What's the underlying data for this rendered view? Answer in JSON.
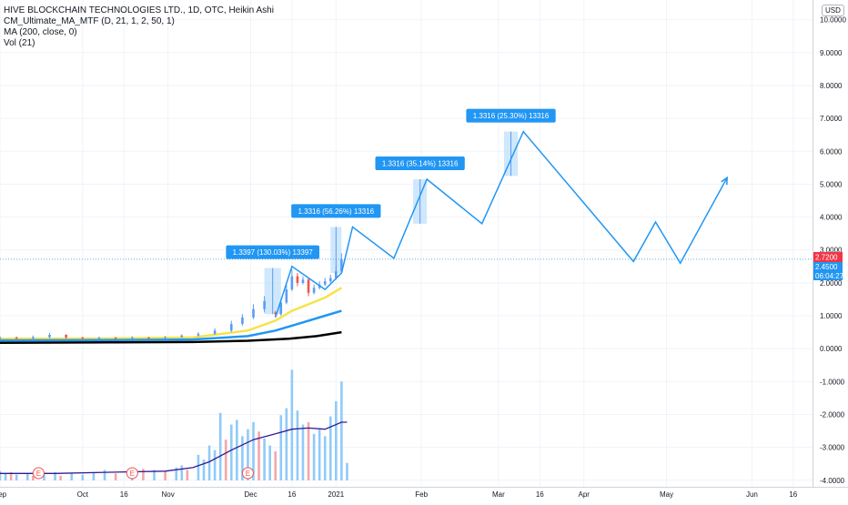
{
  "legend": {
    "title": "HIVE BLOCKCHAIN TECHNOLOGIES LTD., 1D, OTC, Heikin Ashi",
    "line2": "CM_Ultimate_MA_MTF (D, 21, 1, 2, 50, 1)",
    "line3": "MA (200, close, 0)",
    "line4": "Vol (21)"
  },
  "currency_badge": "USD",
  "colors": {
    "up": "#26a69a",
    "up_bar": "#5b9cf6",
    "down": "#ef5350",
    "ma_yellow": "#f7e24a",
    "ma_blue": "#2196f3",
    "ma_black": "#000000",
    "projection": "#2196f3",
    "vol_up": "#90caf9",
    "vol_down": "#f4a7a7",
    "vol_ma": "#311b92",
    "measure_fill": "#bbdefb",
    "label_bg": "#2196f3",
    "last_price_bg": "#f23645",
    "ma_price_bg": "#2196f3",
    "axis_text": "#131722"
  },
  "chart_data": {
    "type": "line",
    "ylim": [
      -4.2,
      10.6
    ],
    "xlim": [
      0,
      295
    ],
    "x_ticks": [
      {
        "label": "Sep",
        "day": 0
      },
      {
        "label": "Oct",
        "day": 30
      },
      {
        "label": "16",
        "day": 45
      },
      {
        "label": "Nov",
        "day": 61
      },
      {
        "label": "Dec",
        "day": 91
      },
      {
        "label": "16",
        "day": 106
      },
      {
        "label": "2021",
        "day": 122
      },
      {
        "label": "Feb",
        "day": 153
      },
      {
        "label": "Mar",
        "day": 181
      },
      {
        "label": "16",
        "day": 196
      },
      {
        "label": "Apr",
        "day": 212
      },
      {
        "label": "May",
        "day": 242
      },
      {
        "label": "Jun",
        "day": 273
      },
      {
        "label": "16",
        "day": 288
      }
    ],
    "y_ticks": [
      "10.0000",
      "9.0000",
      "8.0000",
      "7.0000",
      "6.0000",
      "5.0000",
      "4.0000",
      "3.0000",
      "2.0000",
      "1.0000",
      "0.0000",
      "-1.0000",
      "-2.0000",
      "-3.0000",
      "-4.0000"
    ],
    "price_labels": {
      "last": "2.7200",
      "ma": "2.4500",
      "countdown": "06:04:27"
    },
    "candles": [
      {
        "day": 0,
        "o": 0.3,
        "c": 0.34,
        "h": 0.38,
        "l": 0.27
      },
      {
        "day": 6,
        "o": 0.34,
        "c": 0.31,
        "h": 0.37,
        "l": 0.28
      },
      {
        "day": 12,
        "o": 0.31,
        "c": 0.35,
        "h": 0.4,
        "l": 0.28
      },
      {
        "day": 18,
        "o": 0.35,
        "c": 0.42,
        "h": 0.48,
        "l": 0.31
      },
      {
        "day": 24,
        "o": 0.42,
        "c": 0.34,
        "h": 0.44,
        "l": 0.3
      },
      {
        "day": 30,
        "o": 0.34,
        "c": 0.31,
        "h": 0.36,
        "l": 0.27
      },
      {
        "day": 36,
        "o": 0.31,
        "c": 0.33,
        "h": 0.37,
        "l": 0.28
      },
      {
        "day": 42,
        "o": 0.33,
        "c": 0.31,
        "h": 0.36,
        "l": 0.28
      },
      {
        "day": 48,
        "o": 0.31,
        "c": 0.34,
        "h": 0.38,
        "l": 0.29
      },
      {
        "day": 54,
        "o": 0.34,
        "c": 0.32,
        "h": 0.36,
        "l": 0.29
      },
      {
        "day": 60,
        "o": 0.32,
        "c": 0.35,
        "h": 0.39,
        "l": 0.3
      },
      {
        "day": 66,
        "o": 0.35,
        "c": 0.4,
        "h": 0.44,
        "l": 0.33
      },
      {
        "day": 72,
        "o": 0.4,
        "c": 0.45,
        "h": 0.5,
        "l": 0.37
      },
      {
        "day": 78,
        "o": 0.45,
        "c": 0.55,
        "h": 0.62,
        "l": 0.42
      },
      {
        "day": 84,
        "o": 0.55,
        "c": 0.75,
        "h": 0.85,
        "l": 0.5
      },
      {
        "day": 88,
        "o": 0.75,
        "c": 0.95,
        "h": 1.05,
        "l": 0.7
      },
      {
        "day": 92,
        "o": 0.95,
        "c": 1.2,
        "h": 1.35,
        "l": 0.9
      },
      {
        "day": 96,
        "o": 1.2,
        "c": 1.45,
        "h": 1.6,
        "l": 1.1
      },
      {
        "day": 100,
        "o": 1.1,
        "c": 1.05,
        "h": 1.15,
        "l": 0.95
      },
      {
        "day": 102,
        "o": 1.05,
        "c": 1.4,
        "h": 1.5,
        "l": 1.0
      },
      {
        "day": 104,
        "o": 1.4,
        "c": 1.8,
        "h": 1.95,
        "l": 1.35
      },
      {
        "day": 106,
        "o": 1.8,
        "c": 2.2,
        "h": 2.4,
        "l": 1.75
      },
      {
        "day": 108,
        "o": 2.2,
        "c": 2.0,
        "h": 2.3,
        "l": 1.9
      },
      {
        "day": 110,
        "o": 2.0,
        "c": 2.1,
        "h": 2.2,
        "l": 1.95
      },
      {
        "day": 112,
        "o": 2.1,
        "c": 1.7,
        "h": 2.15,
        "l": 1.6
      },
      {
        "day": 114,
        "o": 1.7,
        "c": 1.85,
        "h": 1.95,
        "l": 1.65
      },
      {
        "day": 116,
        "o": 1.85,
        "c": 1.95,
        "h": 2.05,
        "l": 1.8
      },
      {
        "day": 118,
        "o": 1.95,
        "c": 2.05,
        "h": 2.15,
        "l": 1.9
      },
      {
        "day": 120,
        "o": 2.05,
        "c": 2.15,
        "h": 2.25,
        "l": 2.0
      },
      {
        "day": 122,
        "o": 2.15,
        "c": 2.35,
        "h": 2.5,
        "l": 2.1
      },
      {
        "day": 124,
        "o": 2.35,
        "c": 2.72,
        "h": 2.9,
        "l": 2.3
      }
    ],
    "series": [
      {
        "key": "ma_yellow",
        "points": [
          [
            0,
            0.3
          ],
          [
            40,
            0.31
          ],
          [
            70,
            0.34
          ],
          [
            90,
            0.55
          ],
          [
            100,
            0.85
          ],
          [
            106,
            1.15
          ],
          [
            112,
            1.35
          ],
          [
            118,
            1.55
          ],
          [
            124,
            1.85
          ]
        ]
      },
      {
        "key": "ma_blue",
        "points": [
          [
            0,
            0.25
          ],
          [
            40,
            0.26
          ],
          [
            70,
            0.28
          ],
          [
            90,
            0.38
          ],
          [
            100,
            0.55
          ],
          [
            110,
            0.8
          ],
          [
            118,
            1.0
          ],
          [
            124,
            1.15
          ]
        ]
      },
      {
        "key": "ma_black",
        "points": [
          [
            0,
            0.18
          ],
          [
            40,
            0.19
          ],
          [
            70,
            0.2
          ],
          [
            90,
            0.24
          ],
          [
            105,
            0.3
          ],
          [
            115,
            0.38
          ],
          [
            124,
            0.5
          ]
        ]
      },
      {
        "key": "projection",
        "points": [
          [
            100,
            0.95
          ],
          [
            106,
            2.5
          ],
          [
            118,
            1.8
          ],
          [
            124,
            2.3
          ],
          [
            128,
            3.7
          ],
          [
            143,
            2.75
          ],
          [
            155,
            5.15
          ],
          [
            175,
            3.8
          ],
          [
            190,
            6.6
          ],
          [
            230,
            2.65
          ],
          [
            238,
            3.85
          ],
          [
            247,
            2.6
          ],
          [
            264,
            5.2
          ]
        ]
      }
    ],
    "measures": [
      {
        "label": "1.3397 (130.03%) 13397",
        "day_start": 96,
        "day_end": 102,
        "from": 1.05,
        "to": 2.45
      },
      {
        "label": "1.3316 (56.26%) 13316",
        "day_start": 120,
        "day_end": 124,
        "from": 2.3,
        "to": 3.7
      },
      {
        "label": "1.3316 (35.14%) 13316",
        "day_start": 150,
        "day_end": 155,
        "from": 3.8,
        "to": 5.15
      },
      {
        "label": "1.3316 (25.30%) 13316",
        "day_start": 183,
        "day_end": 188,
        "from": 5.25,
        "to": 6.6
      }
    ],
    "volume": {
      "ylim": [
        0,
        100
      ],
      "bars": [
        {
          "day": 0,
          "v": 8,
          "up": true
        },
        {
          "day": 2,
          "v": 6,
          "up": true
        },
        {
          "day": 4,
          "v": 7,
          "up": false
        },
        {
          "day": 6,
          "v": 5,
          "up": true
        },
        {
          "day": 10,
          "v": 6,
          "up": true
        },
        {
          "day": 12,
          "v": 4,
          "up": false
        },
        {
          "day": 16,
          "v": 5,
          "up": true
        },
        {
          "day": 20,
          "v": 7,
          "up": true
        },
        {
          "day": 22,
          "v": 4,
          "up": false
        },
        {
          "day": 26,
          "v": 6,
          "up": true
        },
        {
          "day": 30,
          "v": 5,
          "up": true
        },
        {
          "day": 34,
          "v": 7,
          "up": true
        },
        {
          "day": 38,
          "v": 9,
          "up": true
        },
        {
          "day": 42,
          "v": 6,
          "up": false
        },
        {
          "day": 48,
          "v": 8,
          "up": true
        },
        {
          "day": 52,
          "v": 10,
          "up": false
        },
        {
          "day": 56,
          "v": 9,
          "up": true
        },
        {
          "day": 60,
          "v": 8,
          "up": false
        },
        {
          "day": 64,
          "v": 11,
          "up": true
        },
        {
          "day": 66,
          "v": 13,
          "up": true
        },
        {
          "day": 68,
          "v": 9,
          "up": false
        },
        {
          "day": 72,
          "v": 22,
          "up": true
        },
        {
          "day": 74,
          "v": 18,
          "up": true
        },
        {
          "day": 76,
          "v": 30,
          "up": true
        },
        {
          "day": 78,
          "v": 26,
          "up": true
        },
        {
          "day": 80,
          "v": 58,
          "up": true
        },
        {
          "day": 82,
          "v": 35,
          "up": false
        },
        {
          "day": 84,
          "v": 48,
          "up": true
        },
        {
          "day": 86,
          "v": 52,
          "up": true
        },
        {
          "day": 88,
          "v": 38,
          "up": true
        },
        {
          "day": 90,
          "v": 44,
          "up": true
        },
        {
          "day": 92,
          "v": 50,
          "up": true
        },
        {
          "day": 94,
          "v": 42,
          "up": false
        },
        {
          "day": 96,
          "v": 36,
          "up": true
        },
        {
          "day": 98,
          "v": 30,
          "up": true
        },
        {
          "day": 100,
          "v": 25,
          "up": false
        },
        {
          "day": 102,
          "v": 56,
          "up": true
        },
        {
          "day": 104,
          "v": 62,
          "up": true
        },
        {
          "day": 106,
          "v": 95,
          "up": true
        },
        {
          "day": 108,
          "v": 60,
          "up": true
        },
        {
          "day": 110,
          "v": 48,
          "up": true
        },
        {
          "day": 112,
          "v": 50,
          "up": false
        },
        {
          "day": 114,
          "v": 40,
          "up": true
        },
        {
          "day": 116,
          "v": 44,
          "up": true
        },
        {
          "day": 118,
          "v": 38,
          "up": true
        },
        {
          "day": 120,
          "v": 55,
          "up": true
        },
        {
          "day": 122,
          "v": 68,
          "up": true
        },
        {
          "day": 124,
          "v": 85,
          "up": true
        },
        {
          "day": 126,
          "v": 15,
          "up": true
        }
      ],
      "ma": [
        [
          0,
          6
        ],
        [
          20,
          6
        ],
        [
          40,
          7
        ],
        [
          60,
          8
        ],
        [
          70,
          11
        ],
        [
          76,
          16
        ],
        [
          84,
          26
        ],
        [
          92,
          35
        ],
        [
          100,
          40
        ],
        [
          106,
          44
        ],
        [
          112,
          45
        ],
        [
          118,
          44
        ],
        [
          124,
          50
        ],
        [
          126,
          50
        ]
      ],
      "earnings_markers": [
        {
          "label": "E",
          "day": 14
        },
        {
          "label": "E",
          "day": 48
        },
        {
          "label": "E",
          "day": 90
        }
      ]
    }
  }
}
